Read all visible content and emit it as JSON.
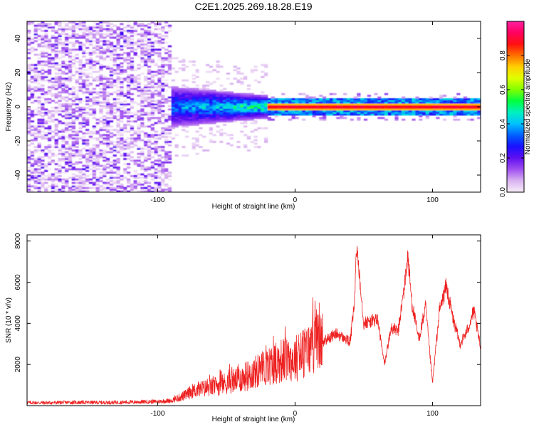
{
  "title": "C2E1.2025.269.18.28.E19",
  "chart_data": [
    {
      "type": "heatmap",
      "xlabel": "Height of straight line (km)",
      "ylabel": "Frequency (Hz)",
      "xlim": [
        -195,
        135
      ],
      "ylim": [
        -50,
        50
      ],
      "x_ticks": [
        -100,
        0,
        100
      ],
      "y_ticks": [
        -40,
        -20,
        0,
        20,
        40
      ],
      "colorbar": {
        "label": "Normalized spectral amplitude",
        "range": [
          0,
          1
        ],
        "ticks": [
          0.0,
          0.2,
          0.4,
          0.6,
          0.8
        ],
        "colors": [
          "#f8eef8",
          "#d9b3f0",
          "#a050f0",
          "#6010f0",
          "#1a10ff",
          "#0060ff",
          "#00c0ff",
          "#00f0c0",
          "#00ff40",
          "#80ff00",
          "#e0ff00",
          "#ffd000",
          "#ff7000",
          "#ff1010",
          "#ff0060",
          "#ff20a0"
        ]
      },
      "regions": [
        {
          "name": "noise",
          "x": [
            -195,
            -92
          ],
          "freq_range": [
            -50,
            50
          ],
          "amplitude": [
            0.0,
            0.25
          ]
        },
        {
          "name": "onset",
          "x": [
            -92,
            -20
          ],
          "freq_range": [
            -12,
            12
          ],
          "amplitude": [
            0.2,
            0.55
          ]
        },
        {
          "name": "tone",
          "x": [
            -20,
            135
          ],
          "freq_center": 0,
          "freq_halfwidth": 1.5,
          "amplitude": [
            0.75,
            1.0
          ]
        }
      ]
    },
    {
      "type": "line",
      "xlabel": "Height of straight line (km)",
      "ylabel": "SNR (10 * v/v)",
      "xlim": [
        -195,
        135
      ],
      "ylim": [
        0,
        8300
      ],
      "x_ticks": [
        -100,
        0,
        100
      ],
      "y_ticks": [
        2000,
        4000,
        6000,
        8000
      ],
      "color": "#ee2222",
      "x": [
        -195,
        -180,
        -160,
        -140,
        -120,
        -100,
        -90,
        -80,
        -75,
        -70,
        -60,
        -50,
        -40,
        -30,
        -20,
        -10,
        0,
        5,
        10,
        15,
        20,
        25,
        30,
        35,
        40,
        43,
        45,
        50,
        60,
        65,
        70,
        75,
        80,
        82,
        85,
        90,
        95,
        100,
        102,
        105,
        110,
        115,
        120,
        125,
        130,
        135
      ],
      "y": [
        150,
        140,
        160,
        150,
        170,
        200,
        250,
        500,
        700,
        800,
        900,
        1100,
        1300,
        1600,
        1900,
        2200,
        2300,
        2500,
        2700,
        3200,
        3100,
        3300,
        3500,
        3300,
        3100,
        4800,
        7800,
        4000,
        4200,
        2000,
        3800,
        3600,
        6000,
        7300,
        5000,
        3200,
        4800,
        1100,
        2500,
        4600,
        5800,
        4200,
        3000,
        3600,
        4600,
        2800
      ]
    }
  ]
}
